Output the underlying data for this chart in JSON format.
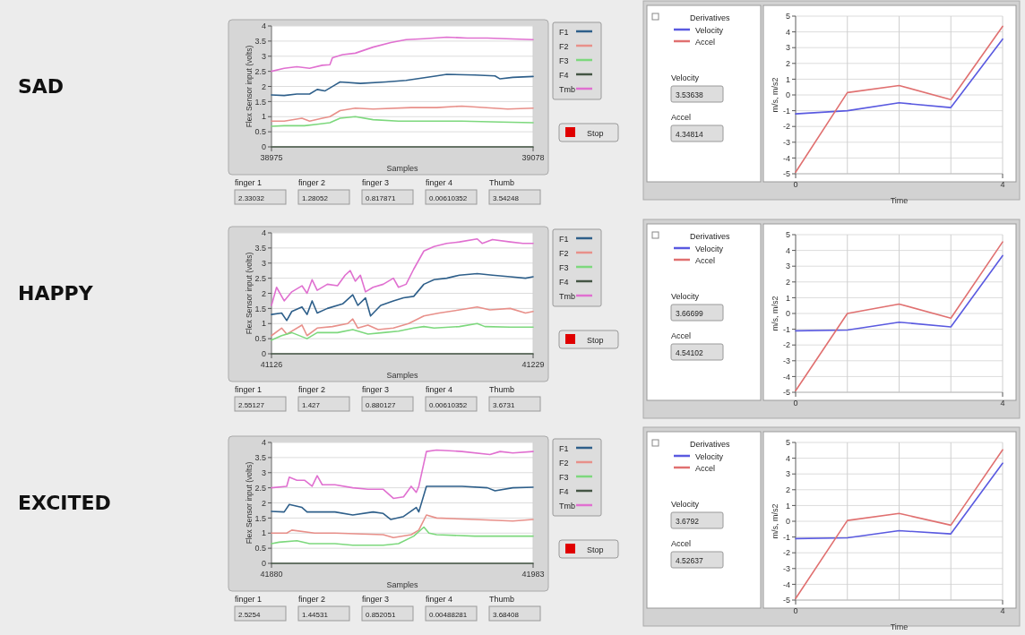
{
  "chart_data": [
    {
      "type": "other",
      "title": "SAD"
    },
    {
      "type": "line",
      "xlabel": "Samples",
      "ylabel": "Flex Sensor input (volts)",
      "xlim": [
        38975,
        39078
      ],
      "xticks": [
        38975,
        39078
      ],
      "ylim": [
        0,
        4
      ],
      "yticks": [
        0,
        0.5,
        1,
        1.5,
        2,
        2.5,
        3,
        3.5,
        4
      ],
      "grid": true,
      "legend": "right",
      "annotations": [
        "finger 1",
        "2.33032",
        "finger 2",
        "1.28052",
        "finger 3",
        "0.817871",
        "finger 4",
        "0.00610352",
        "Thumb",
        "3.54248",
        "Stop"
      ],
      "series": [
        {
          "name": "F1",
          "color": "#2e5f8a",
          "x": [
            38975,
            38980,
            38985,
            38990,
            38993,
            38996,
            39000,
            39002,
            39010,
            39020,
            39028,
            39040,
            39044,
            39055,
            39063,
            39065,
            39070,
            39078
          ],
          "values": [
            1.72,
            1.7,
            1.75,
            1.75,
            1.9,
            1.85,
            2.05,
            2.15,
            2.1,
            2.15,
            2.2,
            2.35,
            2.4,
            2.38,
            2.35,
            2.25,
            2.3,
            2.33
          ]
        },
        {
          "name": "F2",
          "color": "#e8908a",
          "x": [
            38975,
            38980,
            38987,
            38990,
            38995,
            38998,
            39002,
            39008,
            39015,
            39030,
            39040,
            39050,
            39068,
            39078
          ],
          "values": [
            0.85,
            0.85,
            0.95,
            0.85,
            0.95,
            1.0,
            1.2,
            1.28,
            1.25,
            1.3,
            1.3,
            1.35,
            1.25,
            1.28
          ]
        },
        {
          "name": "F3",
          "color": "#7dd87d",
          "x": [
            38975,
            38980,
            38988,
            38993,
            38998,
            39002,
            39008,
            39015,
            39025,
            39040,
            39050,
            39065,
            39078
          ],
          "values": [
            0.68,
            0.7,
            0.7,
            0.75,
            0.8,
            0.95,
            1.0,
            0.9,
            0.85,
            0.85,
            0.85,
            0.82,
            0.8
          ]
        },
        {
          "name": "F4",
          "color": "#445544",
          "x": [
            38975,
            39078
          ],
          "values": [
            0,
            0
          ]
        },
        {
          "name": "Tmb",
          "color": "#e070d0",
          "x": [
            38975,
            38980,
            38985,
            38990,
            38995,
            38998,
            38999,
            39003,
            39008,
            39015,
            39022,
            39028,
            39035,
            39044,
            39052,
            39060,
            39070,
            39078
          ],
          "values": [
            2.5,
            2.6,
            2.65,
            2.6,
            2.7,
            2.72,
            2.95,
            3.05,
            3.1,
            3.3,
            3.45,
            3.55,
            3.58,
            3.63,
            3.6,
            3.6,
            3.57,
            3.55
          ]
        }
      ]
    },
    {
      "type": "line",
      "xlabel": "Time",
      "ylabel": "m/s, m/s2",
      "legend_title": "Derivatives",
      "xlim": [
        0,
        4
      ],
      "xticks": [
        0,
        {
          "value": 1,
          "label": null
        },
        {
          "value": 2,
          "label": null
        },
        {
          "value": 3,
          "label": null
        },
        4
      ],
      "ylim": [
        -5,
        5
      ],
      "yticks": [
        -5,
        -4,
        -3,
        -2,
        -1,
        0,
        1,
        2,
        3,
        4,
        5
      ],
      "grid": true,
      "legend": "left",
      "x": [
        0,
        1,
        2,
        3,
        4
      ],
      "annotations": [
        "Velocity",
        "3.53638",
        "Accel",
        "4.34814"
      ],
      "series": [
        {
          "name": "Velocity",
          "color": "#5a5ae0",
          "values": [
            -1.2,
            -1.0,
            -0.5,
            -0.8,
            3.54
          ]
        },
        {
          "name": "Accel",
          "color": "#e07070",
          "values": [
            -4.9,
            0.15,
            0.6,
            -0.3,
            4.35
          ]
        }
      ]
    },
    {
      "type": "other",
      "title": "HAPPY"
    },
    {
      "type": "line",
      "xlabel": "Samples",
      "ylabel": "Flex Sensor input (volts)",
      "xlim": [
        41126,
        41229
      ],
      "xticks": [
        41126,
        41229
      ],
      "ylim": [
        0,
        4
      ],
      "yticks": [
        0,
        0.5,
        1,
        1.5,
        2,
        2.5,
        3,
        3.5,
        4
      ],
      "grid": true,
      "legend": "right",
      "annotations": [
        "finger 1",
        "2.55127",
        "finger 2",
        "1.427",
        "finger 3",
        "0.880127",
        "finger 4",
        "0.00610352",
        "Thumb",
        "3.6731",
        "Stop"
      ],
      "series": [
        {
          "name": "F1",
          "color": "#2e5f8a",
          "x": [
            41126,
            41130,
            41132,
            41134,
            41138,
            41140,
            41142,
            41144,
            41148,
            41154,
            41158,
            41160,
            41163,
            41165,
            41169,
            41174,
            41178,
            41182,
            41186,
            41190,
            41195,
            41200,
            41207,
            41213,
            41220,
            41226,
            41229
          ],
          "values": [
            1.3,
            1.35,
            1.1,
            1.4,
            1.55,
            1.3,
            1.75,
            1.35,
            1.5,
            1.65,
            1.95,
            1.6,
            1.85,
            1.25,
            1.6,
            1.75,
            1.85,
            1.9,
            2.3,
            2.45,
            2.5,
            2.6,
            2.65,
            2.6,
            2.55,
            2.5,
            2.55
          ]
        },
        {
          "name": "F2",
          "color": "#e8908a",
          "x": [
            41126,
            41130,
            41132,
            41138,
            41140,
            41144,
            41150,
            41156,
            41158,
            41160,
            41164,
            41168,
            41174,
            41180,
            41186,
            41192,
            41200,
            41207,
            41212,
            41220,
            41226,
            41229
          ],
          "values": [
            0.6,
            0.85,
            0.65,
            0.95,
            0.6,
            0.85,
            0.9,
            1.0,
            1.15,
            0.85,
            0.95,
            0.8,
            0.85,
            1.0,
            1.25,
            1.35,
            1.45,
            1.55,
            1.45,
            1.5,
            1.35,
            1.4
          ]
        },
        {
          "name": "F3",
          "color": "#7dd87d",
          "x": [
            41126,
            41130,
            41134,
            41140,
            41144,
            41152,
            41158,
            41164,
            41170,
            41176,
            41182,
            41186,
            41190,
            41200,
            41207,
            41210,
            41220,
            41229
          ],
          "values": [
            0.45,
            0.6,
            0.7,
            0.5,
            0.7,
            0.7,
            0.8,
            0.65,
            0.7,
            0.75,
            0.85,
            0.9,
            0.85,
            0.9,
            1.0,
            0.9,
            0.88,
            0.88
          ]
        },
        {
          "name": "F4",
          "color": "#445544",
          "x": [
            41126,
            41229
          ],
          "values": [
            0,
            0
          ]
        },
        {
          "name": "Tmb",
          "color": "#e070d0",
          "x": [
            41126,
            41128,
            41131,
            41134,
            41138,
            41140,
            41142,
            41144,
            41148,
            41152,
            41155,
            41157,
            41159,
            41161,
            41163,
            41166,
            41170,
            41174,
            41176,
            41179,
            41182,
            41186,
            41190,
            41195,
            41200,
            41207,
            41209,
            41213,
            41220,
            41225,
            41229
          ],
          "values": [
            1.6,
            2.2,
            1.75,
            2.05,
            2.25,
            2.0,
            2.45,
            2.1,
            2.3,
            2.25,
            2.6,
            2.75,
            2.4,
            2.6,
            2.05,
            2.2,
            2.3,
            2.5,
            2.2,
            2.3,
            2.8,
            3.4,
            3.55,
            3.65,
            3.7,
            3.8,
            3.65,
            3.78,
            3.7,
            3.65,
            3.65
          ]
        }
      ]
    },
    {
      "type": "line",
      "ylabel": "m/s, m/s2",
      "legend_title": "Derivatives",
      "xlim": [
        0,
        4
      ],
      "xticks": [
        0,
        {
          "value": 1,
          "label": null
        },
        {
          "value": 2,
          "label": null
        },
        {
          "value": 3,
          "label": null
        },
        4
      ],
      "ylim": [
        -5,
        5
      ],
      "yticks": [
        -5,
        -4,
        -3,
        -2,
        -1,
        0,
        1,
        2,
        3,
        4,
        5
      ],
      "grid": true,
      "legend": "left",
      "x": [
        0,
        1,
        2,
        3,
        4
      ],
      "annotations": [
        "Velocity",
        "3.66699",
        "Accel",
        "4.54102"
      ],
      "series": [
        {
          "name": "Velocity",
          "color": "#5a5ae0",
          "values": [
            -1.1,
            -1.05,
            -0.55,
            -0.85,
            3.67
          ]
        },
        {
          "name": "Accel",
          "color": "#e07070",
          "values": [
            -4.9,
            0,
            0.6,
            -0.3,
            4.54
          ]
        }
      ]
    },
    {
      "type": "other",
      "title": "EXCITED"
    },
    {
      "type": "line",
      "xlabel": "Samples",
      "ylabel": "Flex Sensor input (volts)",
      "xlim": [
        41880,
        41983
      ],
      "xticks": [
        41880,
        41983
      ],
      "ylim": [
        0,
        4
      ],
      "yticks": [
        0,
        0.5,
        1,
        1.5,
        2,
        2.5,
        3,
        3.5,
        4
      ],
      "grid": true,
      "legend": "right",
      "annotations": [
        "finger 1",
        "2.5254",
        "finger 2",
        "1.44531",
        "finger 3",
        "0.852051",
        "finger 4",
        "0.00488281",
        "Thumb",
        "3.68408",
        "Stop"
      ],
      "series": [
        {
          "name": "F1",
          "color": "#2e5f8a",
          "x": [
            41880,
            41885,
            41887,
            41892,
            41894,
            41905,
            41912,
            41920,
            41924,
            41927,
            41932,
            41937,
            41938,
            41941,
            41945,
            41955,
            41965,
            41968,
            41975,
            41983
          ],
          "values": [
            1.72,
            1.7,
            1.95,
            1.85,
            1.7,
            1.7,
            1.6,
            1.7,
            1.65,
            1.45,
            1.55,
            1.85,
            1.7,
            2.55,
            2.55,
            2.55,
            2.5,
            2.4,
            2.5,
            2.52
          ]
        },
        {
          "name": "F2",
          "color": "#e8908a",
          "x": [
            41880,
            41886,
            41888,
            41897,
            41905,
            41924,
            41928,
            41935,
            41938,
            41941,
            41945,
            41960,
            41975,
            41983
          ],
          "values": [
            1.0,
            1.0,
            1.1,
            1.0,
            1.0,
            0.95,
            0.85,
            0.95,
            1.1,
            1.6,
            1.5,
            1.45,
            1.4,
            1.45
          ]
        },
        {
          "name": "F3",
          "color": "#7dd87d",
          "x": [
            41880,
            41883,
            41890,
            41895,
            41905,
            41912,
            41924,
            41930,
            41936,
            41940,
            41942,
            41945,
            41960,
            41983
          ],
          "values": [
            0.65,
            0.7,
            0.75,
            0.65,
            0.65,
            0.6,
            0.6,
            0.65,
            0.9,
            1.2,
            1.0,
            0.95,
            0.9,
            0.9
          ]
        },
        {
          "name": "F4",
          "color": "#445544",
          "x": [
            41880,
            41983
          ],
          "values": [
            0,
            0
          ]
        },
        {
          "name": "Tmb",
          "color": "#e070d0",
          "x": [
            41880,
            41886,
            41887,
            41890,
            41893,
            41896,
            41898,
            41900,
            41905,
            41912,
            41918,
            41924,
            41928,
            41932,
            41935,
            41937,
            41938,
            41941,
            41945,
            41955,
            41966,
            41970,
            41975,
            41983
          ],
          "values": [
            2.5,
            2.55,
            2.85,
            2.75,
            2.75,
            2.55,
            2.9,
            2.6,
            2.6,
            2.5,
            2.45,
            2.45,
            2.15,
            2.2,
            2.55,
            2.35,
            2.55,
            3.7,
            3.75,
            3.7,
            3.6,
            3.7,
            3.65,
            3.7
          ]
        }
      ]
    },
    {
      "type": "line",
      "xlabel": "Time",
      "ylabel": "m/s, m/s2",
      "legend_title": "Derivatives",
      "xlim": [
        0,
        4
      ],
      "xticks": [
        0,
        {
          "value": 1,
          "label": null
        },
        {
          "value": 2,
          "label": null
        },
        {
          "value": 3,
          "label": null
        },
        4
      ],
      "ylim": [
        -5,
        5
      ],
      "yticks": [
        -5,
        -4,
        -3,
        -2,
        -1,
        0,
        1,
        2,
        3,
        4,
        5
      ],
      "grid": true,
      "legend": "left",
      "x": [
        0,
        1,
        2,
        3,
        4
      ],
      "annotations": [
        "Velocity",
        "3.6792",
        "Accel",
        "4.52637"
      ],
      "series": [
        {
          "name": "Velocity",
          "color": "#5a5ae0",
          "values": [
            -1.1,
            -1.05,
            -0.6,
            -0.8,
            3.68
          ]
        },
        {
          "name": "Accel",
          "color": "#e07070",
          "values": [
            -4.9,
            0.05,
            0.5,
            -0.25,
            4.53
          ]
        }
      ]
    }
  ]
}
